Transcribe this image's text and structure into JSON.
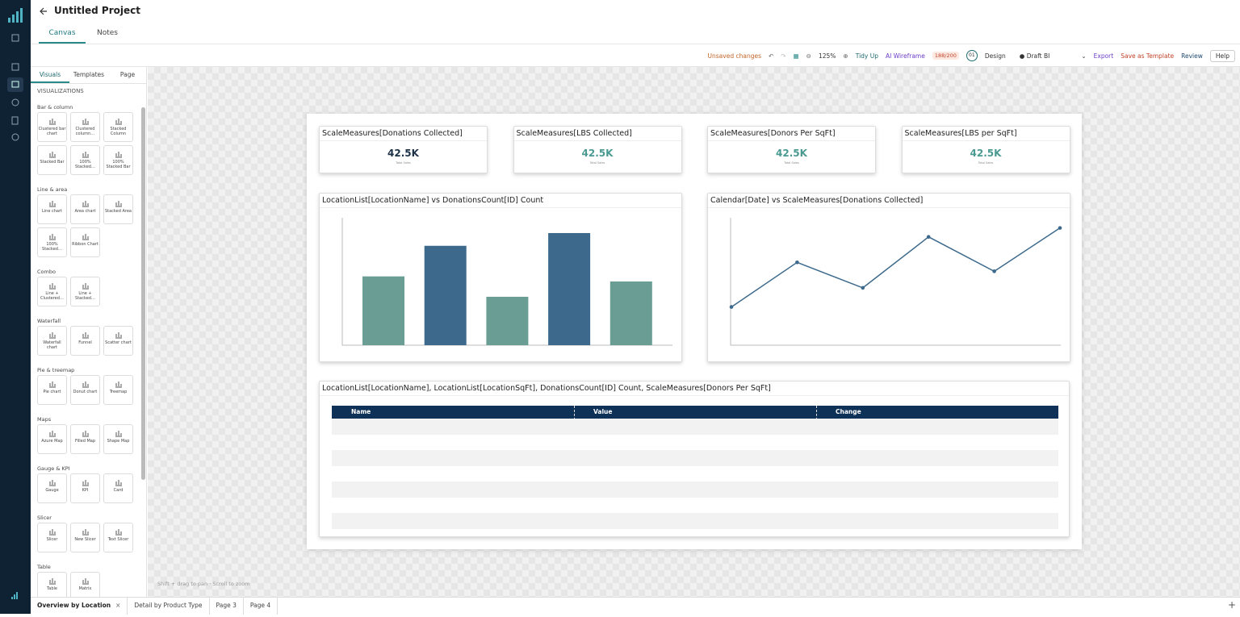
{
  "header": {
    "title": "Untitled Project",
    "tabs": [
      "Canvas",
      "Notes"
    ]
  },
  "toolbar": {
    "status": "Unsaved changes",
    "zoom": "125%",
    "tidy": "Tidy Up",
    "ai": "AI Wireframe",
    "ai_count": "188/200",
    "avatar": "01",
    "design": "Design",
    "draft": "Draft BI",
    "export": "Export",
    "template": "Save as Template",
    "review": "Review",
    "help": "Help"
  },
  "sidebar": {
    "tabs": [
      "Visuals",
      "Templates",
      "Page"
    ],
    "heading": "VISUALIZATIONS",
    "groups": [
      {
        "name": "Bar & column",
        "items": [
          "Clustered bar chart",
          "Clustered column…",
          "Stacked Column",
          "Stacked Bar",
          "100% Stacked…",
          "100% Stacked Bar"
        ]
      },
      {
        "name": "Line & area",
        "items": [
          "Line chart",
          "Area chart",
          "Stacked Area",
          "100% Stacked…",
          "Ribbon Chart"
        ]
      },
      {
        "name": "Combo",
        "items": [
          "Line + Clustered…",
          "Line + Stacked…"
        ]
      },
      {
        "name": "Waterfall",
        "items": [
          "Waterfall chart",
          "Funnel",
          "Scatter chart"
        ]
      },
      {
        "name": "Pie & treemap",
        "items": [
          "Pie chart",
          "Donut chart",
          "Treemap"
        ]
      },
      {
        "name": "Maps",
        "items": [
          "Azure Map",
          "Filled Map",
          "Shape Map"
        ]
      },
      {
        "name": "Gauge & KPI",
        "items": [
          "Gauge",
          "KPI",
          "Card"
        ]
      },
      {
        "name": "Slicer",
        "items": [
          "Slicer",
          "New Slicer",
          "Text Slicer"
        ]
      },
      {
        "name": "Table",
        "items": [
          "Table",
          "Matrix"
        ]
      }
    ]
  },
  "canvas": {
    "hint": "Shift + drag to pan · Scroll to zoom",
    "cards": [
      {
        "title": "ScaleMeasures[Donations Collected]",
        "value": "42.5K",
        "label": "Total Sales",
        "color": "#1d3147"
      },
      {
        "title": "ScaleMeasures[LBS Collected]",
        "value": "42.5K",
        "label": "Total Sales",
        "color": "#4a9a92"
      },
      {
        "title": "ScaleMeasures[Donors Per SqFt]",
        "value": "42.5K",
        "label": "Total Sales",
        "color": "#4a9a92"
      },
      {
        "title": "ScaleMeasures[LBS per SqFt]",
        "value": "42.5K",
        "label": "Total Sales",
        "color": "#4a9a92"
      }
    ],
    "table": {
      "title": "LocationList[LocationName], LocationList[LocationSqFt], DonationsCount[ID] Count, ScaleMeasures[Donors Per SqFt]",
      "columns": [
        "Name",
        "Value",
        "Change"
      ]
    }
  },
  "chart_data": [
    {
      "type": "bar",
      "title": "LocationList[LocationName] vs DonationsCount[ID] Count",
      "values": [
        54,
        78,
        38,
        88,
        50
      ],
      "colors": [
        "#6a9e94",
        "#3d6a8c",
        "#6a9e94",
        "#3d6a8c",
        "#6a9e94"
      ],
      "ylim": [
        0,
        100
      ]
    },
    {
      "type": "line",
      "title": "Calendar[Date] vs ScaleMeasures[Donations Collected]",
      "values": [
        30,
        65,
        45,
        85,
        58,
        92
      ],
      "color": "#3d6a8c",
      "ylim": [
        0,
        100
      ]
    }
  ],
  "pages": [
    "Overview by Location",
    "Detail by Product Type",
    "Page 3",
    "Page 4"
  ]
}
